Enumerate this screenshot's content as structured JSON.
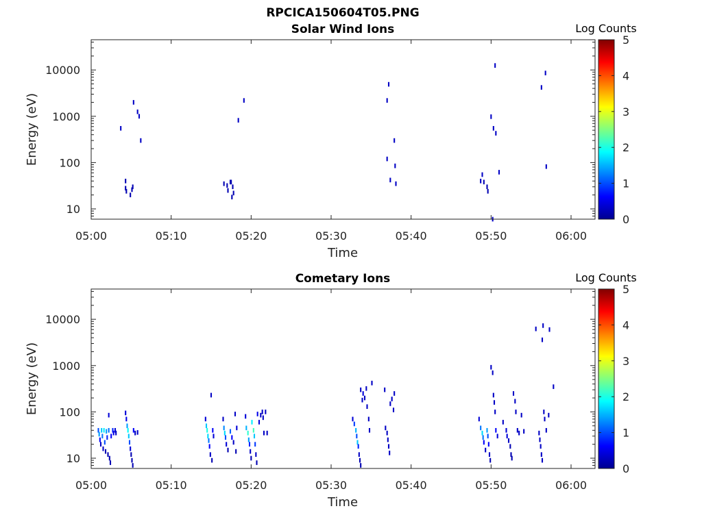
{
  "figure": {
    "title": "RPCICA150604T05.PNG"
  },
  "colors": {
    "colormap": [
      "#00008f",
      "#0000ff",
      "#0080ff",
      "#00ffff",
      "#80ff80",
      "#ffff00",
      "#ff8000",
      "#ff0000",
      "#800000"
    ],
    "axis": "#222222"
  },
  "chart_data": [
    {
      "type": "heatmap",
      "title": "Solar Wind Ions",
      "xlabel": "Time",
      "ylabel": "Energy (eV)",
      "x_unit": "minutes after 05:00",
      "xlim": [
        0,
        63
      ],
      "ylim": [
        6,
        45000
      ],
      "yscale": "log",
      "xticks": [
        "05:00",
        "05:10",
        "05:20",
        "05:30",
        "05:40",
        "05:50",
        "06:00"
      ],
      "yticks": [
        "10",
        "100",
        "1000",
        "10000"
      ],
      "colorbar": {
        "label": "Log Counts",
        "range": [
          0,
          5
        ],
        "ticks": [
          "0",
          "1",
          "2",
          "3",
          "4",
          "5"
        ]
      },
      "cells": [
        [
          3.7,
          550,
          0.3
        ],
        [
          4.3,
          40,
          0.2
        ],
        [
          4.3,
          28,
          0.2
        ],
        [
          4.4,
          24,
          0.2
        ],
        [
          4.9,
          20,
          0.2
        ],
        [
          5.1,
          26,
          0.2
        ],
        [
          5.2,
          30,
          0.2
        ],
        [
          5.3,
          2000,
          0.3
        ],
        [
          5.8,
          1250,
          0.3
        ],
        [
          6.0,
          1000,
          0.3
        ],
        [
          6.2,
          300,
          0.3
        ],
        [
          16.6,
          35,
          0.2
        ],
        [
          17.0,
          32,
          0.2
        ],
        [
          17.1,
          25,
          0.2
        ],
        [
          17.5,
          38,
          0.2
        ],
        [
          17.7,
          30,
          0.2
        ],
        [
          17.8,
          22,
          0.2
        ],
        [
          17.6,
          18,
          0.2
        ],
        [
          17.4,
          38,
          0.2
        ],
        [
          18.4,
          820,
          0.3
        ],
        [
          19.1,
          2200,
          0.3
        ],
        [
          37.0,
          2200,
          0.3
        ],
        [
          37.2,
          4900,
          0.3
        ],
        [
          37.0,
          120,
          0.3
        ],
        [
          37.4,
          42,
          0.3
        ],
        [
          37.9,
          300,
          0.3
        ],
        [
          38.0,
          85,
          0.3
        ],
        [
          38.1,
          35,
          0.3
        ],
        [
          48.7,
          40,
          0.3
        ],
        [
          48.9,
          55,
          0.3
        ],
        [
          49.1,
          38,
          0.2
        ],
        [
          49.5,
          30,
          0.2
        ],
        [
          49.6,
          24,
          0.2
        ],
        [
          50.0,
          980,
          0.3
        ],
        [
          50.2,
          6,
          0.3
        ],
        [
          50.3,
          550,
          0.3
        ],
        [
          50.5,
          12500,
          0.3
        ],
        [
          50.6,
          430,
          0.3
        ],
        [
          51.0,
          62,
          0.3
        ],
        [
          56.3,
          4200,
          0.3
        ],
        [
          56.8,
          8600,
          0.3
        ],
        [
          56.9,
          82,
          0.3
        ]
      ]
    },
    {
      "type": "heatmap",
      "title": "Cometary Ions",
      "xlabel": "Time",
      "ylabel": "Energy (eV)",
      "x_unit": "minutes after 05:00",
      "xlim": [
        0,
        63
      ],
      "ylim": [
        6,
        45000
      ],
      "yscale": "log",
      "xticks": [
        "05:00",
        "05:10",
        "05:20",
        "05:30",
        "05:40",
        "05:50",
        "06:00"
      ],
      "yticks": [
        "10",
        "100",
        "1000",
        "10000"
      ],
      "colorbar": {
        "label": "Log Counts",
        "range": [
          0,
          5
        ],
        "ticks": [
          "0",
          "1",
          "2",
          "3",
          "4",
          "5"
        ]
      },
      "cells": [
        [
          0.9,
          40,
          1.0
        ],
        [
          1.0,
          33,
          1.4
        ],
        [
          1.1,
          25,
          0.6
        ],
        [
          1.2,
          20,
          0.3
        ],
        [
          1.3,
          40,
          1.6
        ],
        [
          1.4,
          30,
          1.2
        ],
        [
          1.5,
          16,
          0.3
        ],
        [
          1.6,
          40,
          1.8
        ],
        [
          1.7,
          22,
          1.0
        ],
        [
          1.8,
          14,
          0.2
        ],
        [
          1.9,
          38,
          1.4
        ],
        [
          2.0,
          28,
          0.8
        ],
        [
          2.1,
          12,
          0.2
        ],
        [
          2.2,
          85,
          0.4
        ],
        [
          2.2,
          40,
          1.2
        ],
        [
          2.3,
          10,
          0.2
        ],
        [
          2.4,
          8,
          0.2
        ],
        [
          2.5,
          30,
          0.6
        ],
        [
          2.7,
          40,
          0.8
        ],
        [
          2.8,
          35,
          0.5
        ],
        [
          3.0,
          40,
          0.4
        ],
        [
          3.1,
          35,
          0.3
        ],
        [
          4.3,
          95,
          0.4
        ],
        [
          4.4,
          70,
          0.5
        ],
        [
          4.5,
          50,
          1.4
        ],
        [
          4.6,
          40,
          1.9
        ],
        [
          4.7,
          30,
          1.6
        ],
        [
          4.8,
          22,
          1.0
        ],
        [
          4.9,
          16,
          0.4
        ],
        [
          5.0,
          12,
          0.2
        ],
        [
          5.1,
          9,
          0.2
        ],
        [
          5.2,
          7,
          0.2
        ],
        [
          5.3,
          40,
          0.6
        ],
        [
          5.5,
          35,
          0.3
        ],
        [
          5.8,
          36,
          0.3
        ],
        [
          14.3,
          70,
          0.4
        ],
        [
          14.4,
          50,
          1.6
        ],
        [
          14.5,
          40,
          2.0
        ],
        [
          14.6,
          30,
          1.7
        ],
        [
          14.7,
          24,
          1.2
        ],
        [
          14.8,
          18,
          0.6
        ],
        [
          14.9,
          12,
          0.3
        ],
        [
          15.0,
          230,
          0.3
        ],
        [
          15.1,
          9,
          0.2
        ],
        [
          15.2,
          40,
          0.6
        ],
        [
          15.3,
          30,
          0.4
        ],
        [
          16.5,
          70,
          0.3
        ],
        [
          16.6,
          45,
          1.3
        ],
        [
          16.7,
          35,
          1.7
        ],
        [
          16.8,
          28,
          1.0
        ],
        [
          16.9,
          20,
          0.4
        ],
        [
          17.1,
          15,
          0.2
        ],
        [
          17.4,
          38,
          1.1
        ],
        [
          17.6,
          28,
          0.6
        ],
        [
          17.8,
          22,
          0.3
        ],
        [
          18.0,
          90,
          0.3
        ],
        [
          18.1,
          14,
          0.2
        ],
        [
          18.2,
          45,
          0.4
        ],
        [
          19.3,
          80,
          0.4
        ],
        [
          19.4,
          45,
          1.5
        ],
        [
          19.6,
          35,
          2.1
        ],
        [
          19.7,
          25,
          1.4
        ],
        [
          19.8,
          20,
          0.8
        ],
        [
          19.9,
          14,
          0.3
        ],
        [
          20.0,
          10,
          0.2
        ],
        [
          20.1,
          60,
          1.8
        ],
        [
          20.3,
          40,
          2.2
        ],
        [
          20.4,
          30,
          1.6
        ],
        [
          20.5,
          20,
          0.9
        ],
        [
          20.6,
          12,
          0.3
        ],
        [
          20.7,
          8,
          0.2
        ],
        [
          20.8,
          90,
          0.5
        ],
        [
          21.0,
          60,
          0.4
        ],
        [
          21.2,
          85,
          0.3
        ],
        [
          21.4,
          100,
          0.3
        ],
        [
          21.5,
          75,
          0.3
        ],
        [
          21.6,
          35,
          0.3
        ],
        [
          21.8,
          100,
          0.3
        ],
        [
          22.0,
          35,
          0.3
        ],
        [
          32.7,
          70,
          0.4
        ],
        [
          32.9,
          55,
          0.9
        ],
        [
          33.1,
          40,
          1.5
        ],
        [
          33.2,
          30,
          1.0
        ],
        [
          33.3,
          22,
          1.6
        ],
        [
          33.4,
          18,
          0.8
        ],
        [
          33.5,
          12,
          0.3
        ],
        [
          33.6,
          9,
          0.2
        ],
        [
          33.7,
          7,
          0.2
        ],
        [
          33.7,
          300,
          0.3
        ],
        [
          33.9,
          180,
          0.3
        ],
        [
          34.0,
          250,
          0.4
        ],
        [
          34.2,
          200,
          0.3
        ],
        [
          34.4,
          320,
          0.3
        ],
        [
          34.5,
          130,
          0.3
        ],
        [
          34.7,
          70,
          0.3
        ],
        [
          34.8,
          40,
          0.3
        ],
        [
          35.1,
          420,
          0.3
        ],
        [
          36.7,
          300,
          0.3
        ],
        [
          36.8,
          45,
          0.3
        ],
        [
          37.0,
          35,
          0.3
        ],
        [
          37.1,
          25,
          0.3
        ],
        [
          37.2,
          18,
          0.3
        ],
        [
          37.3,
          13,
          0.3
        ],
        [
          37.4,
          150,
          0.3
        ],
        [
          37.6,
          190,
          0.3
        ],
        [
          37.8,
          110,
          0.3
        ],
        [
          37.9,
          250,
          0.3
        ],
        [
          48.5,
          70,
          0.4
        ],
        [
          48.7,
          45,
          1.2
        ],
        [
          48.9,
          35,
          1.7
        ],
        [
          49.0,
          28,
          1.2
        ],
        [
          49.1,
          22,
          0.6
        ],
        [
          49.3,
          15,
          0.3
        ],
        [
          49.5,
          40,
          1.4
        ],
        [
          49.6,
          30,
          1.0
        ],
        [
          49.7,
          20,
          0.6
        ],
        [
          49.8,
          12,
          0.3
        ],
        [
          49.9,
          9,
          0.2
        ],
        [
          50.0,
          920,
          0.3
        ],
        [
          50.2,
          700,
          0.3
        ],
        [
          50.3,
          230,
          0.3
        ],
        [
          50.4,
          160,
          0.3
        ],
        [
          50.5,
          100,
          0.3
        ],
        [
          50.6,
          40,
          0.6
        ],
        [
          50.8,
          30,
          0.4
        ],
        [
          51.5,
          60,
          0.3
        ],
        [
          51.9,
          40,
          0.4
        ],
        [
          52.0,
          30,
          0.4
        ],
        [
          52.2,
          24,
          0.3
        ],
        [
          52.4,
          18,
          0.2
        ],
        [
          52.5,
          12,
          0.2
        ],
        [
          52.6,
          10,
          0.2
        ],
        [
          52.8,
          250,
          0.3
        ],
        [
          53.0,
          170,
          0.3
        ],
        [
          53.1,
          100,
          0.3
        ],
        [
          53.3,
          40,
          0.3
        ],
        [
          53.5,
          35,
          0.3
        ],
        [
          53.8,
          85,
          0.3
        ],
        [
          54.1,
          38,
          0.3
        ],
        [
          55.6,
          6200,
          0.3
        ],
        [
          56.0,
          35,
          0.3
        ],
        [
          56.1,
          25,
          0.3
        ],
        [
          56.2,
          18,
          0.3
        ],
        [
          56.3,
          12,
          0.3
        ],
        [
          56.4,
          9,
          0.3
        ],
        [
          56.4,
          3600,
          0.3
        ],
        [
          56.5,
          7300,
          0.3
        ],
        [
          56.6,
          100,
          0.3
        ],
        [
          56.7,
          70,
          0.3
        ],
        [
          56.9,
          40,
          0.3
        ],
        [
          57.2,
          85,
          0.3
        ],
        [
          57.3,
          6000,
          0.3
        ],
        [
          57.8,
          350,
          0.3
        ]
      ]
    }
  ]
}
